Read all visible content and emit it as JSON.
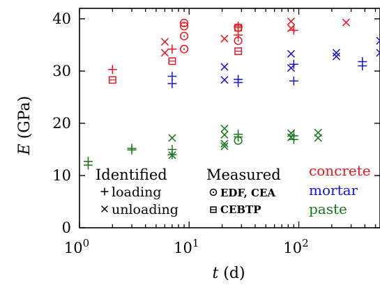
{
  "chart_data": {
    "type": "scatter",
    "xscale": "log",
    "xlim": [
      1,
      550
    ],
    "ylim": [
      0,
      42
    ],
    "xlabel": {
      "symbol": "t",
      "unit": "(d)"
    },
    "ylabel": {
      "symbol": "E",
      "unit": "(GPa)"
    },
    "xticks": [
      {
        "value": 1,
        "base": "10",
        "exp": "0"
      },
      {
        "value": 10,
        "base": "10",
        "exp": "1"
      },
      {
        "value": 100,
        "base": "10",
        "exp": "2"
      }
    ],
    "yticks": [
      0,
      10,
      20,
      30,
      40
    ],
    "grid": false,
    "colors": {
      "concrete": "#e8171f",
      "mortar": "#1616d2",
      "paste": "#16771b",
      "legend": "#000000"
    },
    "legend": {
      "identified_title": "Identified",
      "measured_title": "Measured",
      "loading_label": "loading",
      "unloading_label": "unloading",
      "edf_label": "EDF, CEA",
      "cebtp_label": "CEBTP",
      "materials": [
        {
          "key": "concrete",
          "label": "concrete"
        },
        {
          "key": "mortar",
          "label": "mortar"
        },
        {
          "key": "paste",
          "label": "paste"
        }
      ]
    },
    "series": [
      {
        "material": "concrete",
        "marker": "plus",
        "points": [
          [
            2,
            30.3
          ],
          [
            7,
            34.2
          ],
          [
            28,
            36.9
          ],
          [
            28,
            38.6
          ],
          [
            90,
            37.8
          ]
        ]
      },
      {
        "material": "concrete",
        "marker": "x",
        "points": [
          [
            6,
            35.6
          ],
          [
            6,
            33.5
          ],
          [
            21,
            36.2
          ],
          [
            85,
            39.5
          ],
          [
            85,
            38.2
          ],
          [
            270,
            39.3
          ]
        ]
      },
      {
        "material": "concrete",
        "marker": "circle",
        "points": [
          [
            9,
            39.2
          ],
          [
            9,
            38.6
          ],
          [
            9,
            36.7
          ],
          [
            9,
            34.2
          ],
          [
            28,
            38.3
          ],
          [
            28,
            35.8
          ]
        ]
      },
      {
        "material": "concrete",
        "marker": "square",
        "points": [
          [
            2,
            28.3
          ],
          [
            7,
            31.9
          ],
          [
            28,
            38.3
          ],
          [
            28,
            33.8
          ]
        ]
      },
      {
        "material": "mortar",
        "marker": "plus",
        "points": [
          [
            7,
            29.0
          ],
          [
            7,
            27.6
          ],
          [
            28,
            28.4
          ],
          [
            28,
            27.8
          ],
          [
            90,
            31.3
          ],
          [
            90,
            28.1
          ],
          [
            380,
            31.8
          ],
          [
            380,
            31.0
          ]
        ]
      },
      {
        "material": "mortar",
        "marker": "x",
        "points": [
          [
            21,
            30.8
          ],
          [
            21,
            28.3
          ],
          [
            85,
            33.3
          ],
          [
            85,
            30.6
          ],
          [
            220,
            33.5
          ],
          [
            220,
            32.8
          ],
          [
            550,
            35.8
          ],
          [
            550,
            33.5
          ]
        ]
      },
      {
        "material": "paste",
        "marker": "plus",
        "points": [
          [
            1.2,
            12.7
          ],
          [
            1.2,
            12.0
          ],
          [
            3,
            15.2
          ],
          [
            3,
            14.9
          ],
          [
            7,
            15.0
          ],
          [
            7,
            14.0
          ],
          [
            28,
            17.9
          ],
          [
            28,
            17.4
          ],
          [
            90,
            17.6
          ],
          [
            90,
            16.9
          ]
        ]
      },
      {
        "material": "paste",
        "marker": "x",
        "points": [
          [
            7,
            17.2
          ],
          [
            7,
            13.9
          ],
          [
            21,
            19.0
          ],
          [
            21,
            17.8
          ],
          [
            21,
            16.1
          ],
          [
            21,
            15.6
          ],
          [
            85,
            18.1
          ],
          [
            85,
            17.3
          ],
          [
            150,
            18.2
          ],
          [
            150,
            17.2
          ]
        ]
      },
      {
        "material": "paste",
        "marker": "circle",
        "points": [
          [
            28,
            16.7
          ]
        ]
      }
    ]
  }
}
